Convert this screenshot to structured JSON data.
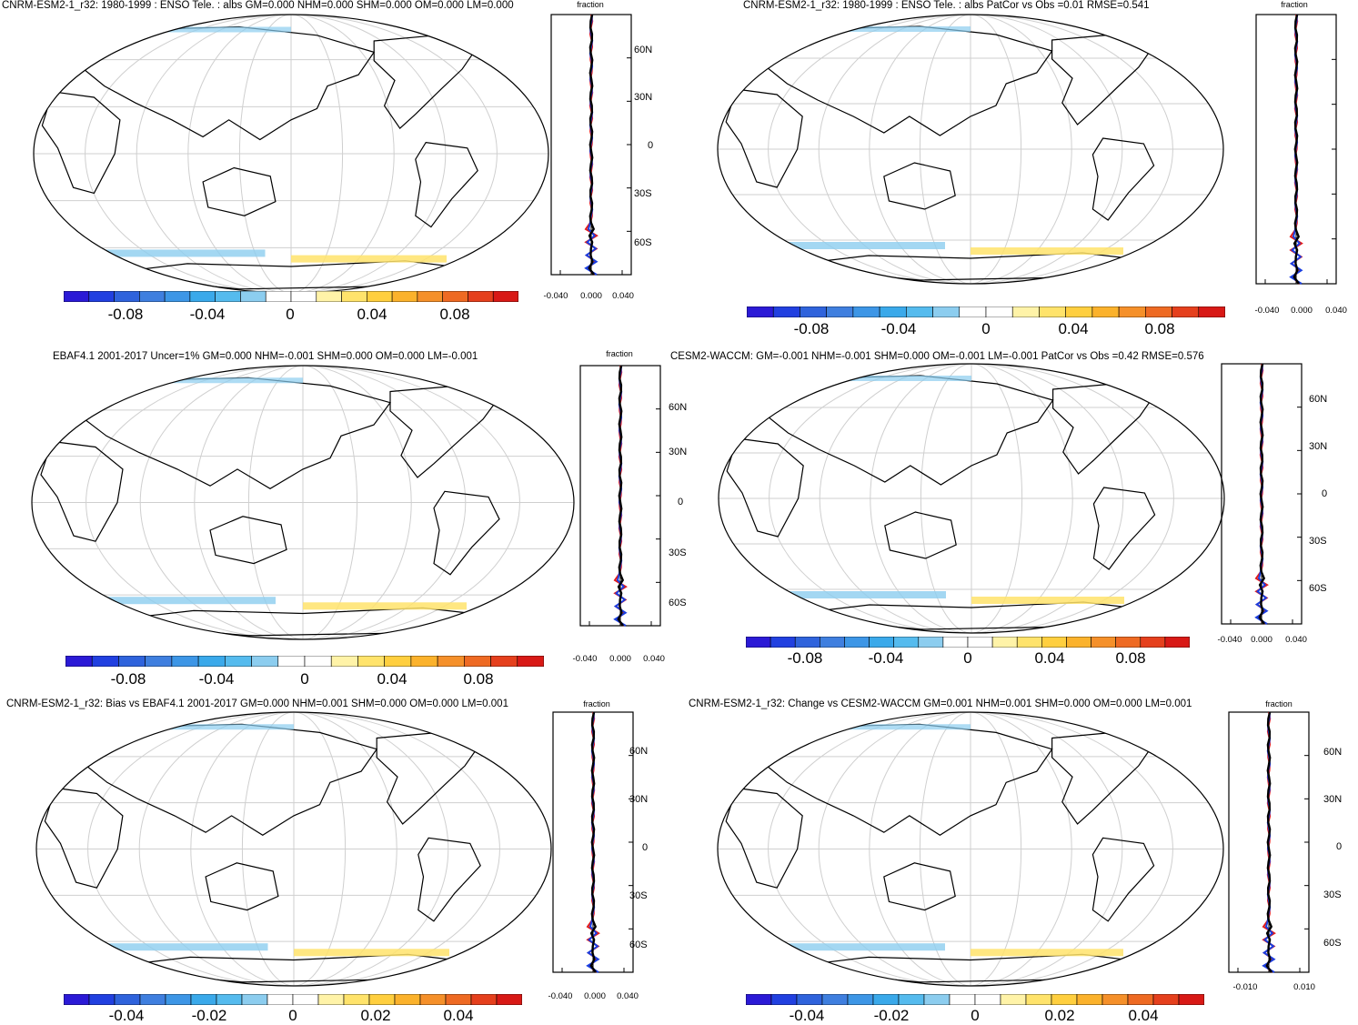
{
  "panels": [
    {
      "id": "p1",
      "title": "CNRM-ESM2-1_r32: 1980-1999 : ENSO Tele. : albs GM=0.000 NHM=0.000 SHM=0.000 OM=0.000 LM=0.000",
      "profile_label": "fraction",
      "lat_labels": [
        "60N",
        "30N",
        "0",
        "30S",
        "60S"
      ],
      "x_ticks": [
        "-0.040",
        "0.000",
        "0.040"
      ],
      "colorbar_labels": [
        "-0.08",
        "-0.04",
        "0",
        "0.04",
        "0.08"
      ]
    },
    {
      "id": "p2",
      "title": "CNRM-ESM2-1_r32: 1980-1999 : ENSO Tele. : albs PatCor vs Obs =0.01 RMSE=0.541",
      "profile_label": "fraction",
      "lat_labels": [],
      "x_ticks": [
        "-0.040",
        "0.000",
        "0.040"
      ],
      "colorbar_labels": [
        "-0.08",
        "-0.04",
        "0",
        "0.04",
        "0.08"
      ]
    },
    {
      "id": "p3",
      "title": "EBAF4.1 2001-2017 Uncer=1% GM=0.000 NHM=-0.001 SHM=0.000 OM=0.000 LM=-0.001",
      "profile_label": "fraction",
      "lat_labels": [
        "60N",
        "30N",
        "0",
        "30S",
        "60S"
      ],
      "x_ticks": [
        "-0.040",
        "0.000",
        "0.040"
      ],
      "colorbar_labels": [
        "-0.08",
        "-0.04",
        "0",
        "0.04",
        "0.08"
      ]
    },
    {
      "id": "p4",
      "title": "CESM2-WACCM: GM=-0.001 NHM=-0.001 SHM=0.000 OM=-0.001 LM=-0.001 PatCor vs Obs =0.42 RMSE=0.576",
      "profile_label": "",
      "lat_labels": [
        "60N",
        "30N",
        "0",
        "30S",
        "60S"
      ],
      "x_ticks": [
        "-0.040",
        "0.000",
        "0.040"
      ],
      "colorbar_labels": [
        "-0.08",
        "-0.04",
        "0",
        "0.04",
        "0.08"
      ]
    },
    {
      "id": "p5",
      "title": "CNRM-ESM2-1_r32: Bias vs EBAF4.1 2001-2017 GM=0.000 NHM=0.001 SHM=0.000 OM=0.000 LM=0.001",
      "profile_label": "fraction",
      "lat_labels": [
        "60N",
        "30N",
        "0",
        "30S",
        "60S"
      ],
      "x_ticks": [
        "-0.040",
        "0.000",
        "0.040"
      ],
      "colorbar_labels": [
        "-0.04",
        "-0.02",
        "0",
        "0.02",
        "0.04"
      ]
    },
    {
      "id": "p6",
      "title": "CNRM-ESM2-1_r32: Change vs CESM2-WACCM GM=0.001 NHM=0.001 SHM=0.000 OM=0.000 LM=0.001",
      "profile_label": "fraction",
      "lat_labels": [
        "60N",
        "30N",
        "0",
        "30S",
        "60S"
      ],
      "x_ticks": [
        "-0.010",
        "0.010"
      ],
      "colorbar_labels": [
        "-0.04",
        "-0.02",
        "0",
        "0.02",
        "0.04"
      ]
    }
  ],
  "colorbar_colors": [
    "#2b1ad6",
    "#2140e0",
    "#2f63dc",
    "#3f7fdf",
    "#3d96e6",
    "#3aa9ea",
    "#55bbee",
    "#8ccdef",
    "#ffffff",
    "#ffffff",
    "#fff3a8",
    "#ffe36b",
    "#ffcf3f",
    "#fbb22c",
    "#f5902a",
    "#ee6a23",
    "#e5401d",
    "#d81916"
  ],
  "profile_colors": {
    "model": "#e21a1a",
    "obs": "#1a3ee0",
    "mean": "#000000"
  }
}
